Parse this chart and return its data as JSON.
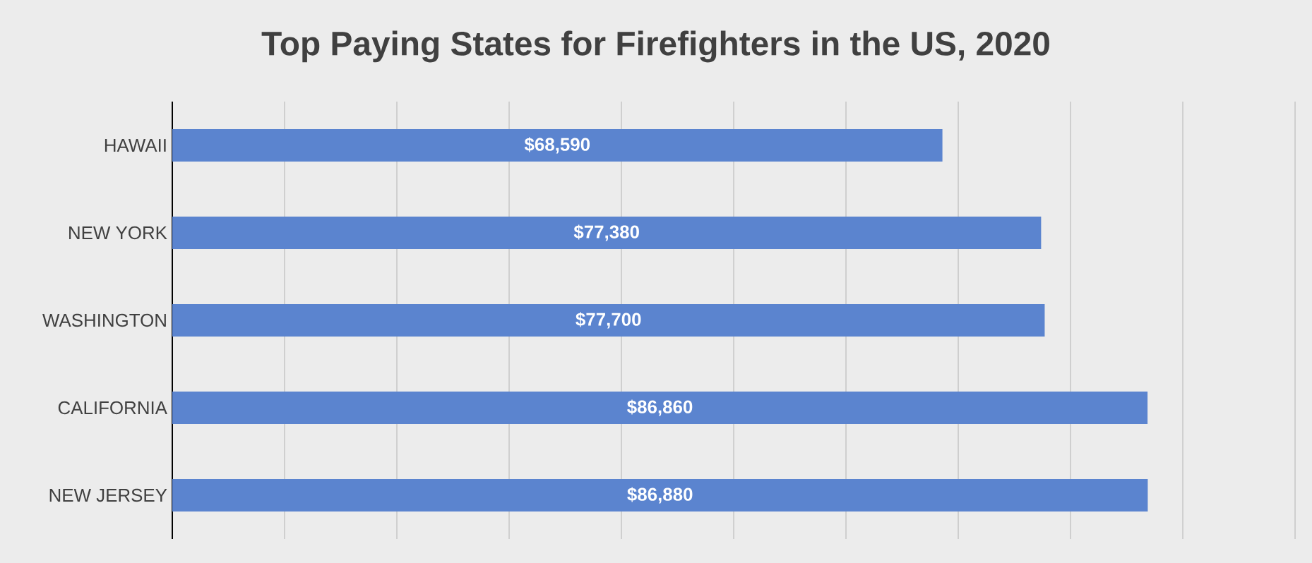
{
  "chart_data": {
    "type": "bar",
    "orientation": "horizontal",
    "title": "Top Paying States for Firefighters in the US, 2020",
    "categories": [
      "HAWAII",
      "NEW YORK",
      "WASHINGTON",
      "CALIFORNIA",
      "NEW JERSEY"
    ],
    "values": [
      68590,
      77380,
      77700,
      86860,
      86880
    ],
    "value_labels": [
      "$68,590",
      "$77,380",
      "$77,700",
      "$86,860",
      "$86,880"
    ],
    "color": "#5b84cf",
    "xlim": [
      0,
      100000
    ],
    "xticks": [
      {
        "value": 0,
        "label": null
      },
      {
        "value": 10000,
        "label": null
      },
      {
        "value": 20000,
        "label": null
      },
      {
        "value": 30000,
        "label": null
      },
      {
        "value": 40000,
        "label": null
      },
      {
        "value": 50000,
        "label": null
      },
      {
        "value": 60000,
        "label": null
      },
      {
        "value": 70000,
        "label": null
      },
      {
        "value": 80000,
        "label": null
      },
      {
        "value": 90000,
        "label": null
      },
      {
        "value": 100000,
        "label": null
      }
    ],
    "grid": "x",
    "tick_labels": "y"
  }
}
